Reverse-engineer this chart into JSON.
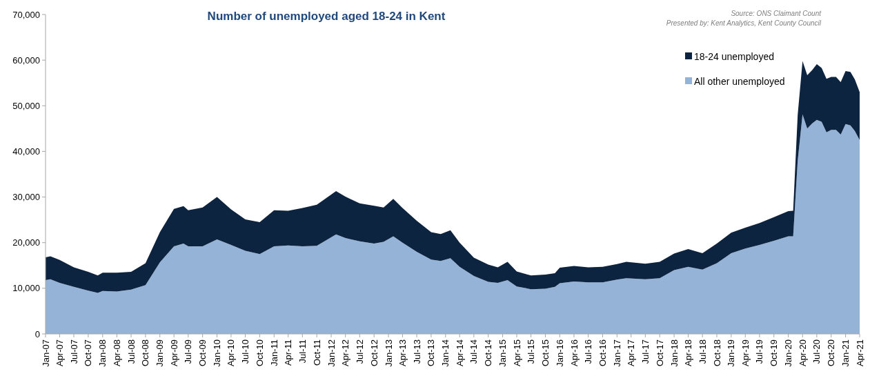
{
  "chart_data": {
    "type": "area",
    "stacked": true,
    "title": "Number of unemployed aged 18-24 in Kent",
    "annotations": [
      "Source: ONS Claimant Count",
      "Presented by: Kent Analytics, Kent County Council"
    ],
    "x": [
      "2007-01",
      "2007-02",
      "2007-04",
      "2007-07",
      "2007-10",
      "2007-12",
      "2008-01",
      "2008-04",
      "2008-07",
      "2008-10",
      "2009-01",
      "2009-04",
      "2009-06",
      "2009-07",
      "2009-10",
      "2010-01",
      "2010-04",
      "2010-07",
      "2010-10",
      "2011-01",
      "2011-04",
      "2011-07",
      "2011-10",
      "2012-02",
      "2012-04",
      "2012-07",
      "2012-10",
      "2012-12",
      "2013-02",
      "2013-04",
      "2013-07",
      "2013-10",
      "2013-12",
      "2014-02",
      "2014-04",
      "2014-07",
      "2014-10",
      "2014-12",
      "2015-02",
      "2015-04",
      "2015-07",
      "2015-10",
      "2015-12",
      "2016-01",
      "2016-04",
      "2016-07",
      "2016-10",
      "2017-01",
      "2017-03",
      "2017-07",
      "2017-10",
      "2018-01",
      "2018-04",
      "2018-07",
      "2018-10",
      "2019-01",
      "2019-04",
      "2019-07",
      "2019-10",
      "2020-01",
      "2020-02",
      "2020-03",
      "2020-04",
      "2020-05",
      "2020-06",
      "2020-07",
      "2020-08",
      "2020-09",
      "2020-10",
      "2020-11",
      "2020-12",
      "2021-01",
      "2021-02",
      "2021-03",
      "2021-04"
    ],
    "series": [
      {
        "name": "All other unemployed",
        "color": "#95b3d7",
        "values": [
          11800,
          12000,
          11200,
          10300,
          9500,
          9000,
          9400,
          9300,
          9700,
          10700,
          15700,
          19200,
          19800,
          19200,
          19200,
          20700,
          19500,
          18200,
          17500,
          19200,
          19400,
          19200,
          19300,
          21800,
          21000,
          20300,
          19800,
          20200,
          21400,
          20000,
          18000,
          16300,
          16000,
          16600,
          14700,
          12700,
          11400,
          11200,
          11800,
          10400,
          9800,
          9900,
          10300,
          11100,
          11500,
          11300,
          11300,
          11900,
          12200,
          12000,
          12200,
          14000,
          14700,
          14100,
          15500,
          17700,
          18700,
          19500,
          20400,
          21400,
          21400,
          38000,
          48100,
          45000,
          46100,
          46900,
          46500,
          44200,
          44700,
          44700,
          43700,
          46000,
          45700,
          44500,
          42500
        ]
      },
      {
        "name": "18-24 unemployed",
        "color": "#0d2440",
        "values": [
          5000,
          5000,
          5000,
          4300,
          4100,
          3800,
          4000,
          4100,
          3900,
          4800,
          6600,
          8200,
          8200,
          7900,
          8500,
          9300,
          7800,
          6900,
          7000,
          7900,
          7600,
          8400,
          9000,
          9500,
          9100,
          8300,
          8300,
          7500,
          8200,
          7600,
          6800,
          6000,
          5900,
          6100,
          5300,
          4000,
          3800,
          3400,
          4000,
          3300,
          3000,
          3100,
          3000,
          3400,
          3400,
          3300,
          3400,
          3400,
          3600,
          3400,
          3600,
          3600,
          3900,
          3600,
          4300,
          4500,
          4600,
          4800,
          5200,
          5500,
          5600,
          10000,
          11700,
          11700,
          11700,
          12200,
          11800,
          11700,
          11600,
          11600,
          11500,
          11600,
          11700,
          11300,
          10500
        ]
      }
    ],
    "xlim": [
      "2007-01",
      "2021-04"
    ],
    "xticks": [
      {
        "value": "2007-01",
        "label": "Jan-07"
      },
      {
        "value": "2007-04",
        "label": "Apr-07"
      },
      {
        "value": "2007-07",
        "label": "Jul-07"
      },
      {
        "value": "2007-10",
        "label": "Oct-07"
      },
      {
        "value": "2008-01",
        "label": "Jan-08"
      },
      {
        "value": "2008-04",
        "label": "Apr-08"
      },
      {
        "value": "2008-07",
        "label": "Jul-08"
      },
      {
        "value": "2008-10",
        "label": "Oct-08"
      },
      {
        "value": "2009-01",
        "label": "Jan-09"
      },
      {
        "value": "2009-04",
        "label": "Apr-09"
      },
      {
        "value": "2009-07",
        "label": "Jul-09"
      },
      {
        "value": "2009-10",
        "label": "Oct-09"
      },
      {
        "value": "2010-01",
        "label": "Jan-10"
      },
      {
        "value": "2010-04",
        "label": "Apr-10"
      },
      {
        "value": "2010-07",
        "label": "Jul-10"
      },
      {
        "value": "2010-10",
        "label": "Oct-10"
      },
      {
        "value": "2011-01",
        "label": "Jan-11"
      },
      {
        "value": "2011-04",
        "label": "Apr-11"
      },
      {
        "value": "2011-07",
        "label": "Jul-11"
      },
      {
        "value": "2011-10",
        "label": "Oct-11"
      },
      {
        "value": "2012-01",
        "label": "Jan-12"
      },
      {
        "value": "2012-04",
        "label": "Apr-12"
      },
      {
        "value": "2012-07",
        "label": "Jul-12"
      },
      {
        "value": "2012-10",
        "label": "Oct-12"
      },
      {
        "value": "2013-01",
        "label": "Jan-13"
      },
      {
        "value": "2013-04",
        "label": "Apr-13"
      },
      {
        "value": "2013-07",
        "label": "Jul-13"
      },
      {
        "value": "2013-10",
        "label": "Oct-13"
      },
      {
        "value": "2014-01",
        "label": "Jan-14"
      },
      {
        "value": "2014-04",
        "label": "Apr-14"
      },
      {
        "value": "2014-07",
        "label": "Jul-14"
      },
      {
        "value": "2014-10",
        "label": "Oct-14"
      },
      {
        "value": "2015-01",
        "label": "Jan-15"
      },
      {
        "value": "2015-04",
        "label": "Apr-15"
      },
      {
        "value": "2015-07",
        "label": "Jul-15"
      },
      {
        "value": "2015-10",
        "label": "Oct-15"
      },
      {
        "value": "2016-01",
        "label": "Jan-16"
      },
      {
        "value": "2016-04",
        "label": "Apr-16"
      },
      {
        "value": "2016-07",
        "label": "Jul-16"
      },
      {
        "value": "2016-10",
        "label": "Oct-16"
      },
      {
        "value": "2017-01",
        "label": "Jan-17"
      },
      {
        "value": "2017-04",
        "label": "Apr-17"
      },
      {
        "value": "2017-07",
        "label": "Jul-17"
      },
      {
        "value": "2017-10",
        "label": "Oct-17"
      },
      {
        "value": "2018-01",
        "label": "Jan-18"
      },
      {
        "value": "2018-04",
        "label": "Apr-18"
      },
      {
        "value": "2018-07",
        "label": "Jul-18"
      },
      {
        "value": "2018-10",
        "label": "Oct-18"
      },
      {
        "value": "2019-01",
        "label": "Jan-19"
      },
      {
        "value": "2019-04",
        "label": "Apr-19"
      },
      {
        "value": "2019-07",
        "label": "Jul-19"
      },
      {
        "value": "2019-10",
        "label": "Oct-19"
      },
      {
        "value": "2020-01",
        "label": "Jan-20"
      },
      {
        "value": "2020-04",
        "label": "Apr-20"
      },
      {
        "value": "2020-07",
        "label": "Jul-20"
      },
      {
        "value": "2020-10",
        "label": "Oct-20"
      },
      {
        "value": "2021-01",
        "label": "Jan-21"
      },
      {
        "value": "2021-04",
        "label": "Apr-21"
      }
    ],
    "ylim": [
      0,
      70000
    ],
    "yticks": [
      0,
      {
        "value": 10000,
        "label": "10,000"
      },
      {
        "value": 20000,
        "label": "20,000"
      },
      {
        "value": 30000,
        "label": "30,000"
      },
      {
        "value": 40000,
        "label": "40,000"
      },
      {
        "value": 50000,
        "label": "50,000"
      },
      {
        "value": 60000,
        "label": "60,000"
      },
      {
        "value": 70000,
        "label": "70,000"
      }
    ],
    "grid": false,
    "legend": "top right"
  }
}
